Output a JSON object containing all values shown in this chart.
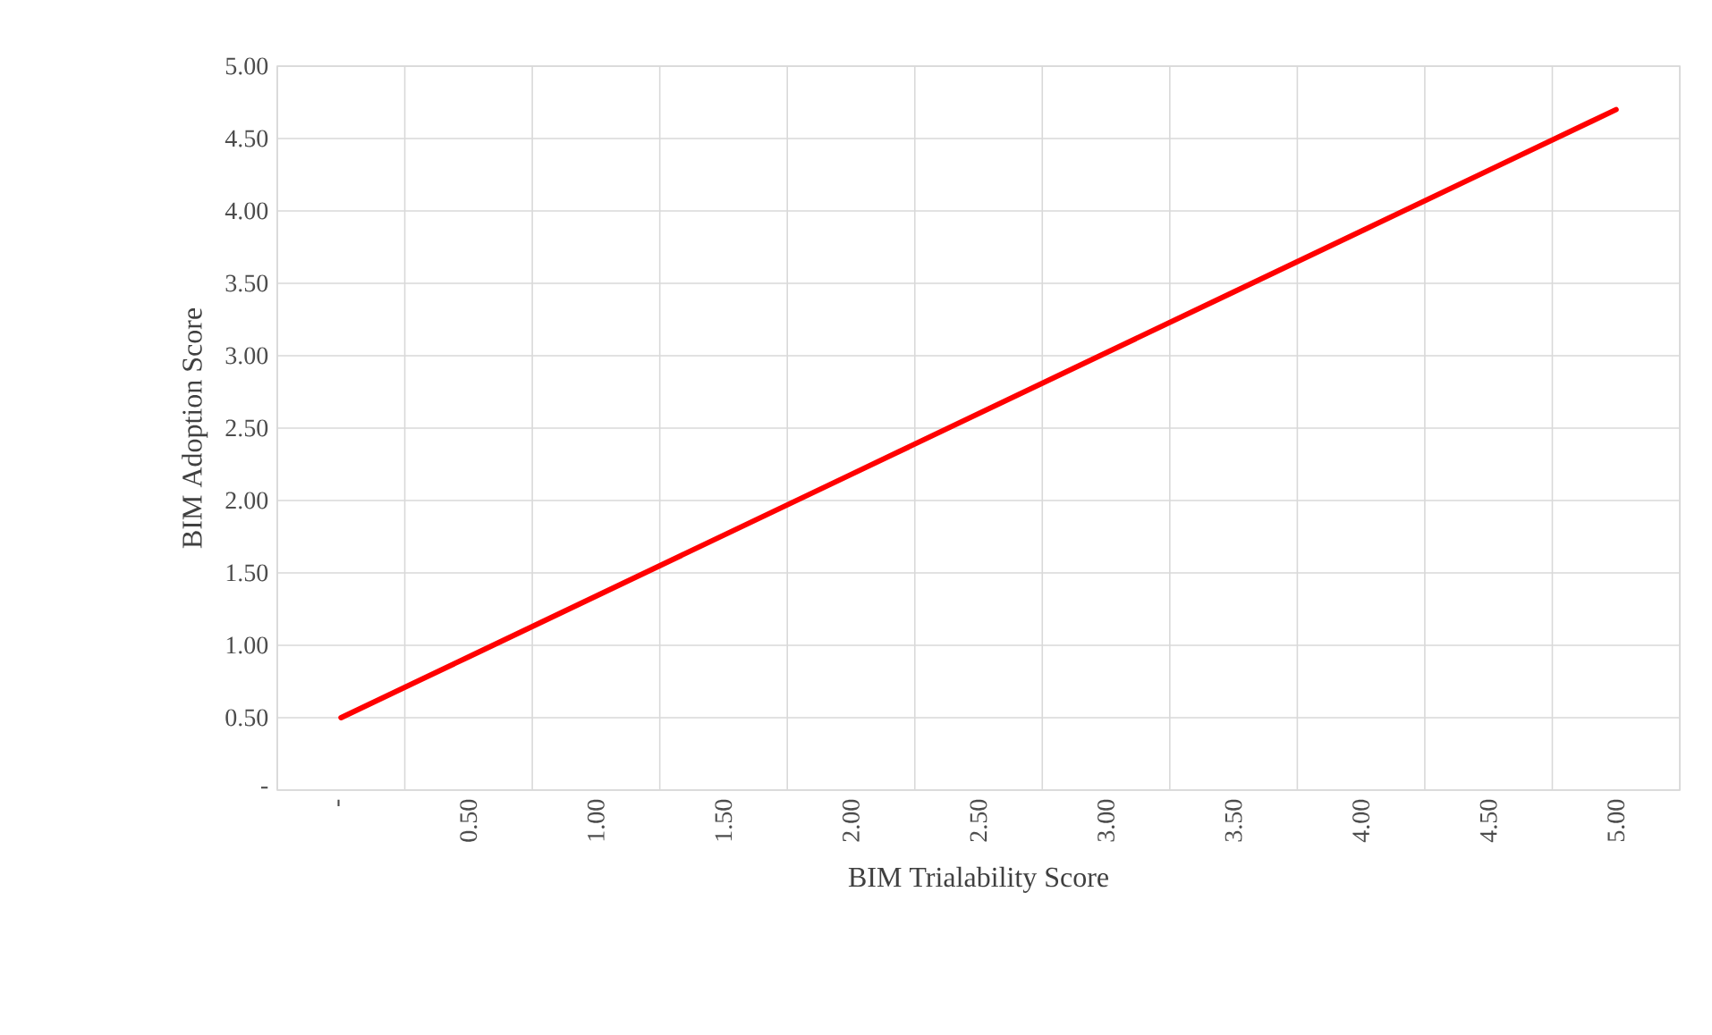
{
  "chart_data": {
    "type": "line",
    "xlabel": "BIM Trialability Score",
    "ylabel": "BIM Adoption Score",
    "categories": [
      "-",
      "0.50",
      "1.00",
      "1.50",
      "2.00",
      "2.50",
      "3.00",
      "3.50",
      "4.00",
      "4.50",
      "5.00"
    ],
    "series": [
      {
        "color": "#ff0000",
        "values": [
          0.5,
          0.92,
          1.34,
          1.76,
          2.18,
          2.6,
          3.02,
          3.44,
          3.86,
          4.28,
          4.7
        ]
      }
    ],
    "ylim": [
      0,
      5
    ],
    "yticks": [
      {
        "value": 0,
        "label": "-"
      },
      {
        "value": 0.5,
        "label": "0.50"
      },
      {
        "value": 1,
        "label": "1.00"
      },
      {
        "value": 1.5,
        "label": "1.50"
      },
      {
        "value": 2,
        "label": "2.00"
      },
      {
        "value": 2.5,
        "label": "2.50"
      },
      {
        "value": 3,
        "label": "3.00"
      },
      {
        "value": 3.5,
        "label": "3.50"
      },
      {
        "value": 4,
        "label": "4.00"
      },
      {
        "value": 4.5,
        "label": "4.50"
      },
      {
        "value": 5,
        "label": "5.00"
      }
    ],
    "grid": true,
    "marker": "none",
    "line_style": "solid"
  }
}
